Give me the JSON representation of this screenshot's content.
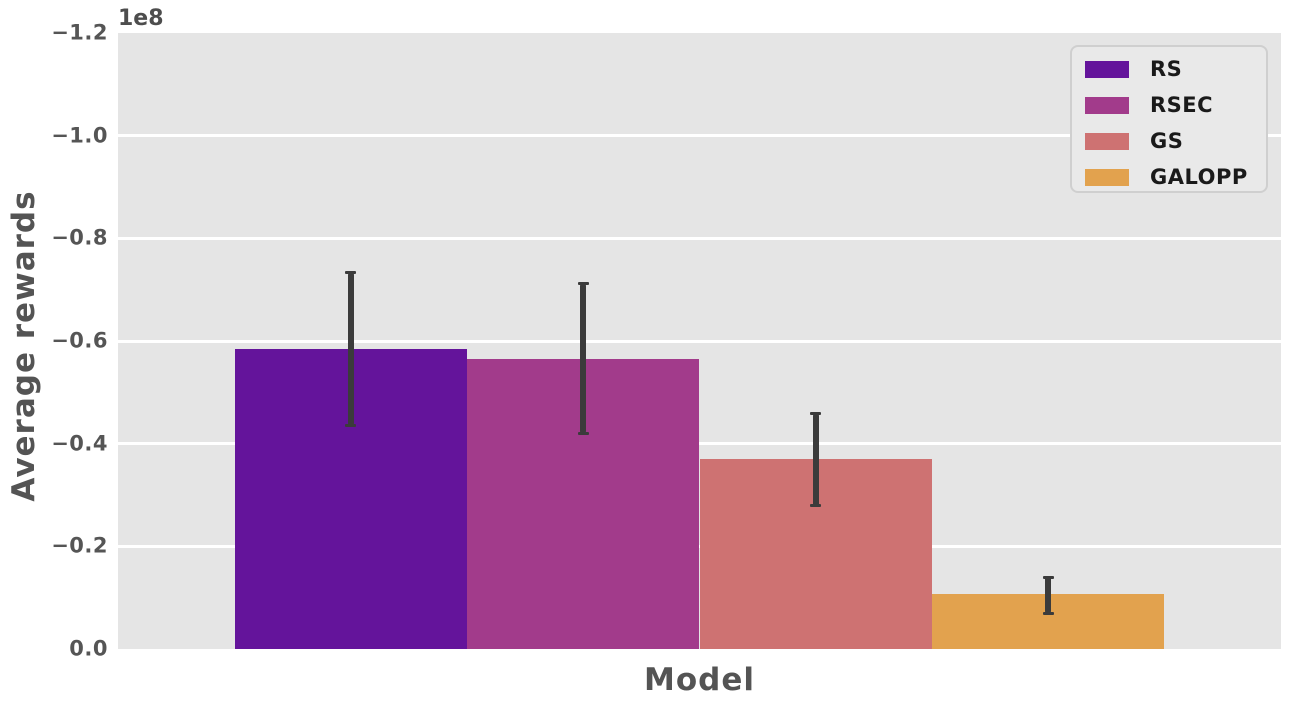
{
  "chart_data": {
    "type": "bar",
    "title": "",
    "xlabel": "Model",
    "ylabel": "Average rewards",
    "offset_text": "1e8",
    "categories": [
      "RS",
      "RSEC",
      "GS",
      "GALOPP"
    ],
    "values": [
      -58400000,
      -56400000,
      -37000000,
      -10700000
    ],
    "error_low": [
      -43600000,
      -42000000,
      -27900000,
      -7000000
    ],
    "error_high": [
      -73300000,
      -71200000,
      -45800000,
      -14000000
    ],
    "bar_colors": [
      "#64149B",
      "#A23B8B",
      "#CE7272",
      "#E2A24E"
    ],
    "error_color": "#3B3B3B",
    "ylim": [
      0,
      -120000000
    ],
    "axis_inverted": true,
    "grid": true,
    "gridline_color": "#FFFFFF",
    "plot_background": "#E5E5E5",
    "yticks": [
      {
        "label": "0.0",
        "value": 0
      },
      {
        "label": "−0.2",
        "value": -20000000
      },
      {
        "label": "−0.4",
        "value": -40000000
      },
      {
        "label": "−0.6",
        "value": -60000000
      },
      {
        "label": "−0.8",
        "value": -80000000
      },
      {
        "label": "−1.0",
        "value": -100000000
      },
      {
        "label": "−1.2",
        "value": -120000000
      }
    ],
    "legend": {
      "position": "upper right",
      "entries": [
        {
          "label": "RS",
          "color": "#64149B"
        },
        {
          "label": "RSEC",
          "color": "#A23B8B"
        },
        {
          "label": "GS",
          "color": "#CE7272"
        },
        {
          "label": "GALOPP",
          "color": "#E2A24E"
        }
      ]
    }
  }
}
